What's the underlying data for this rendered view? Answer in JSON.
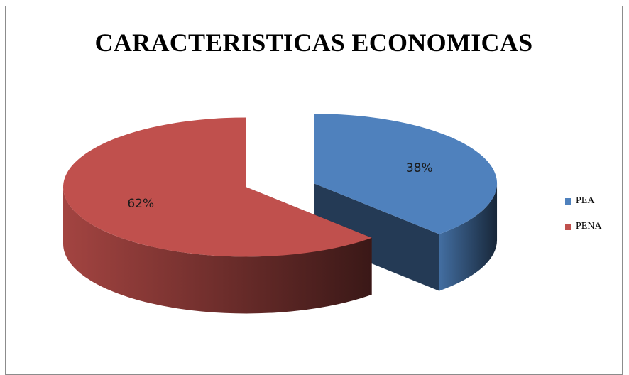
{
  "chart_data": {
    "type": "pie",
    "title": "CARACTERISTICAS ECONOMICAS",
    "categories": [
      "PEA",
      "PENA"
    ],
    "values": [
      38,
      62
    ],
    "data_labels": [
      "38%",
      "62%"
    ],
    "legend_position": "right",
    "colors": [
      "#4f81bd",
      "#c0504d"
    ],
    "exploded": true,
    "three_d": true
  }
}
